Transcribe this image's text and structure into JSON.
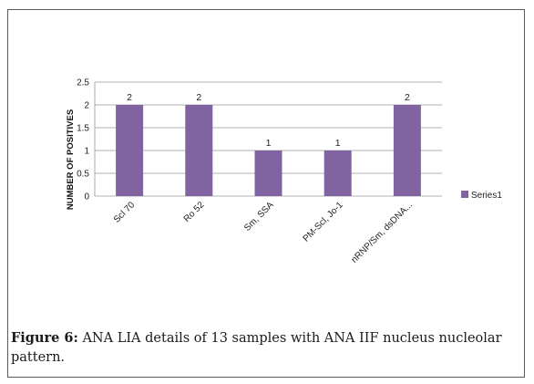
{
  "chart_data": {
    "type": "bar",
    "ylabel": "NUMBER OF POSITIVES",
    "xlabel": "",
    "categories": [
      "Scl 70",
      "Ro 52",
      "Sm, SSA",
      "PM-Scl, Jo-1",
      "nRNP/Sm, dsDNA..."
    ],
    "series": [
      {
        "name": "Series1",
        "values": [
          2,
          2,
          1,
          1,
          2
        ],
        "color": "#8064a2"
      }
    ],
    "ylim": [
      0,
      2.5
    ],
    "yticks": [
      0,
      0.5,
      1,
      1.5,
      2,
      2.5
    ],
    "ytick_labels": [
      "0",
      "0.5",
      "1",
      "1.5",
      "2",
      "2.5"
    ],
    "data_labels": [
      "2",
      "2",
      "1",
      "1",
      "2"
    ],
    "grid": true,
    "legend": "right"
  },
  "caption": {
    "label": "Figure 6:",
    "text": " ANA LIA details of 13 samples with ANA IIF nucleus nucleolar pattern."
  }
}
